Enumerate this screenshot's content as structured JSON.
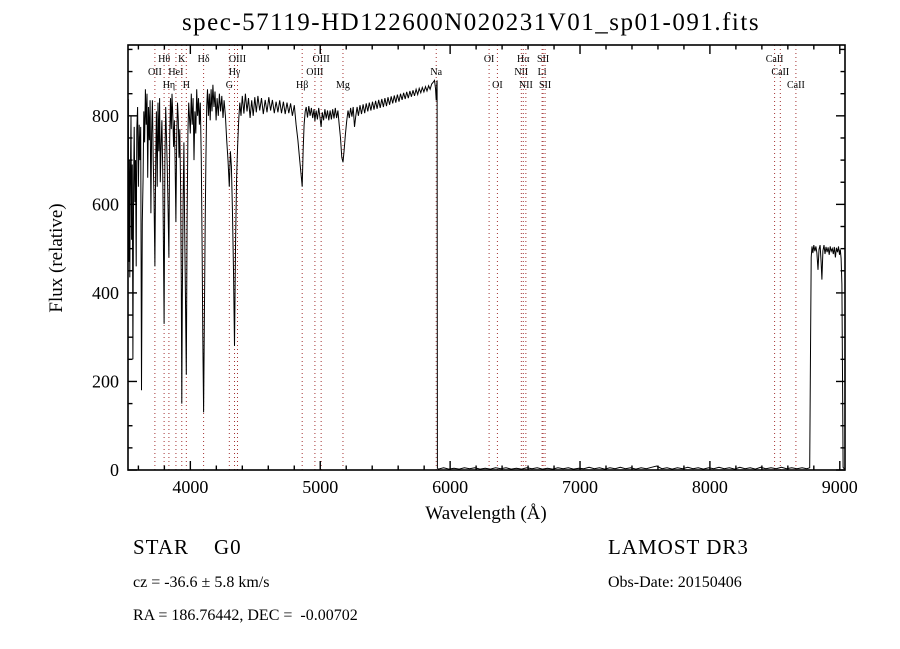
{
  "title": "spec-57119-HD122600N020231V01_sp01-091.fits",
  "chart_data": {
    "type": "line",
    "title": "spec-57119-HD122600N020231V01_sp01-091.fits",
    "xlabel": "Wavelength (Å)",
    "ylabel": "Flux (relative)",
    "xlim": [
      3520,
      9040
    ],
    "ylim": [
      0,
      960
    ],
    "xticks": [
      4000,
      5000,
      6000,
      7000,
      8000,
      9000
    ],
    "yticks": [
      0,
      200,
      400,
      600,
      800
    ],
    "x_minor_step": 200,
    "y_minor_step": 50,
    "grid": false,
    "legend": false,
    "series_color": "#000000",
    "marker_line_color": "#a33232",
    "spectral_lines": [
      {
        "wl": 3727,
        "label": "OII",
        "row": 2
      },
      {
        "wl": 3798,
        "label": "Hθ",
        "row": 1
      },
      {
        "wl": 3835,
        "label": "Hη",
        "row": 3
      },
      {
        "wl": 3889,
        "label": "HeI",
        "row": 2
      },
      {
        "wl": 3934,
        "label": "K",
        "row": 1
      },
      {
        "wl": 3969,
        "label": "H",
        "row": 3
      },
      {
        "wl": 4102,
        "label": "Hδ",
        "row": 1
      },
      {
        "wl": 4300,
        "label": "G",
        "row": 3
      },
      {
        "wl": 4340,
        "label": "Hγ",
        "row": 2
      },
      {
        "wl": 4363,
        "label": "OIII",
        "row": 1
      },
      {
        "wl": 4861,
        "label": "Hβ",
        "row": 3
      },
      {
        "wl": 4959,
        "label": "OIII",
        "row": 2
      },
      {
        "wl": 5007,
        "label": "OIII",
        "row": 1
      },
      {
        "wl": 5175,
        "label": "Mg",
        "row": 3
      },
      {
        "wl": 5893,
        "label": "Na",
        "row": 2
      },
      {
        "wl": 6300,
        "label": "OI",
        "row": 1
      },
      {
        "wl": 6364,
        "label": "OI",
        "row": 3
      },
      {
        "wl": 6548,
        "label": "NII",
        "row": 2
      },
      {
        "wl": 6563,
        "label": "Hα",
        "row": 1
      },
      {
        "wl": 6583,
        "label": "NII",
        "row": 3
      },
      {
        "wl": 6708,
        "label": "Li",
        "row": 2
      },
      {
        "wl": 6716,
        "label": "SII",
        "row": 1
      },
      {
        "wl": 6731,
        "label": "SII",
        "row": 3
      },
      {
        "wl": 8498,
        "label": "CaII",
        "row": 1
      },
      {
        "wl": 8542,
        "label": "CaII",
        "row": 2
      },
      {
        "wl": 8662,
        "label": "CaII",
        "row": 3
      }
    ],
    "points": [
      [
        3522,
        838
      ],
      [
        3525,
        600
      ],
      [
        3528,
        470
      ],
      [
        3531,
        700
      ],
      [
        3534,
        435
      ],
      [
        3538,
        640
      ],
      [
        3543,
        800
      ],
      [
        3548,
        520
      ],
      [
        3553,
        690
      ],
      [
        3558,
        250
      ],
      [
        3563,
        640
      ],
      [
        3568,
        775
      ],
      [
        3573,
        605
      ],
      [
        3578,
        700
      ],
      [
        3583,
        460
      ],
      [
        3588,
        770
      ],
      [
        3594,
        820
      ],
      [
        3600,
        640
      ],
      [
        3606,
        780
      ],
      [
        3612,
        700
      ],
      [
        3618,
        775
      ],
      [
        3624,
        180
      ],
      [
        3630,
        560
      ],
      [
        3636,
        660
      ],
      [
        3642,
        810
      ],
      [
        3648,
        740
      ],
      [
        3654,
        860
      ],
      [
        3660,
        780
      ],
      [
        3666,
        850
      ],
      [
        3672,
        660
      ],
      [
        3678,
        820
      ],
      [
        3684,
        745
      ],
      [
        3690,
        835
      ],
      [
        3696,
        580
      ],
      [
        3702,
        760
      ],
      [
        3708,
        835
      ],
      [
        3714,
        700
      ],
      [
        3720,
        620
      ],
      [
        3727,
        460
      ],
      [
        3733,
        700
      ],
      [
        3739,
        810
      ],
      [
        3745,
        640
      ],
      [
        3751,
        830
      ],
      [
        3757,
        720
      ],
      [
        3763,
        840
      ],
      [
        3769,
        650
      ],
      [
        3775,
        735
      ],
      [
        3781,
        790
      ],
      [
        3787,
        680
      ],
      [
        3792,
        540
      ],
      [
        3798,
        330
      ],
      [
        3804,
        700
      ],
      [
        3810,
        820
      ],
      [
        3816,
        760
      ],
      [
        3822,
        690
      ],
      [
        3828,
        600
      ],
      [
        3835,
        480
      ],
      [
        3841,
        750
      ],
      [
        3847,
        840
      ],
      [
        3853,
        770
      ],
      [
        3859,
        850
      ],
      [
        3865,
        800
      ],
      [
        3871,
        730
      ],
      [
        3877,
        790
      ],
      [
        3883,
        680
      ],
      [
        3889,
        560
      ],
      [
        3895,
        750
      ],
      [
        3901,
        830
      ],
      [
        3907,
        790
      ],
      [
        3913,
        705
      ],
      [
        3919,
        770
      ],
      [
        3925,
        640
      ],
      [
        3930,
        420
      ],
      [
        3934,
        150
      ],
      [
        3938,
        380
      ],
      [
        3944,
        600
      ],
      [
        3950,
        740
      ],
      [
        3956,
        560
      ],
      [
        3962,
        400
      ],
      [
        3969,
        215
      ],
      [
        3975,
        560
      ],
      [
        3981,
        760
      ],
      [
        3987,
        830
      ],
      [
        3993,
        800
      ],
      [
        4000,
        760
      ],
      [
        4007,
        850
      ],
      [
        4014,
        780
      ],
      [
        4021,
        840
      ],
      [
        4028,
        700
      ],
      [
        4035,
        810
      ],
      [
        4042,
        760
      ],
      [
        4049,
        860
      ],
      [
        4056,
        800
      ],
      [
        4063,
        840
      ],
      [
        4070,
        780
      ],
      [
        4077,
        830
      ],
      [
        4084,
        700
      ],
      [
        4091,
        480
      ],
      [
        4096,
        300
      ],
      [
        4102,
        130
      ],
      [
        4108,
        350
      ],
      [
        4114,
        560
      ],
      [
        4120,
        700
      ],
      [
        4126,
        820
      ],
      [
        4132,
        860
      ],
      [
        4139,
        800
      ],
      [
        4146,
        850
      ],
      [
        4153,
        790
      ],
      [
        4160,
        860
      ],
      [
        4167,
        810
      ],
      [
        4174,
        870
      ],
      [
        4182,
        820
      ],
      [
        4190,
        855
      ],
      [
        4198,
        790
      ],
      [
        4206,
        840
      ],
      [
        4215,
        800
      ],
      [
        4224,
        850
      ],
      [
        4233,
        810
      ],
      [
        4242,
        845
      ],
      [
        4251,
        795
      ],
      [
        4260,
        835
      ],
      [
        4270,
        800
      ],
      [
        4280,
        745
      ],
      [
        4290,
        700
      ],
      [
        4300,
        640
      ],
      [
        4308,
        720
      ],
      [
        4316,
        685
      ],
      [
        4324,
        590
      ],
      [
        4332,
        450
      ],
      [
        4340,
        280
      ],
      [
        4348,
        520
      ],
      [
        4356,
        660
      ],
      [
        4364,
        730
      ],
      [
        4372,
        790
      ],
      [
        4381,
        830
      ],
      [
        4390,
        800
      ],
      [
        4400,
        845
      ],
      [
        4412,
        805
      ],
      [
        4424,
        850
      ],
      [
        4436,
        810
      ],
      [
        4448,
        840
      ],
      [
        4460,
        795
      ],
      [
        4472,
        835
      ],
      [
        4484,
        800
      ],
      [
        4496,
        842
      ],
      [
        4508,
        808
      ],
      [
        4520,
        845
      ],
      [
        4534,
        812
      ],
      [
        4548,
        840
      ],
      [
        4562,
        804
      ],
      [
        4576,
        836
      ],
      [
        4590,
        808
      ],
      [
        4604,
        842
      ],
      [
        4618,
        812
      ],
      [
        4632,
        836
      ],
      [
        4646,
        806
      ],
      [
        4660,
        832
      ],
      [
        4674,
        808
      ],
      [
        4688,
        835
      ],
      [
        4702,
        806
      ],
      [
        4716,
        832
      ],
      [
        4730,
        804
      ],
      [
        4744,
        830
      ],
      [
        4758,
        806
      ],
      [
        4772,
        828
      ],
      [
        4786,
        800
      ],
      [
        4800,
        824
      ],
      [
        4814,
        780
      ],
      [
        4828,
        745
      ],
      [
        4842,
        700
      ],
      [
        4855,
        660
      ],
      [
        4861,
        640
      ],
      [
        4868,
        720
      ],
      [
        4876,
        780
      ],
      [
        4884,
        810
      ],
      [
        4892,
        820
      ],
      [
        4902,
        796
      ],
      [
        4912,
        822
      ],
      [
        4922,
        800
      ],
      [
        4932,
        818
      ],
      [
        4942,
        795
      ],
      [
        4952,
        815
      ],
      [
        4959,
        788
      ],
      [
        4968,
        812
      ],
      [
        4978,
        792
      ],
      [
        4988,
        818
      ],
      [
        4998,
        796
      ],
      [
        5007,
        775
      ],
      [
        5016,
        808
      ],
      [
        5026,
        790
      ],
      [
        5036,
        815
      ],
      [
        5046,
        794
      ],
      [
        5056,
        812
      ],
      [
        5066,
        790
      ],
      [
        5076,
        812
      ],
      [
        5086,
        792
      ],
      [
        5096,
        815
      ],
      [
        5106,
        794
      ],
      [
        5116,
        818
      ],
      [
        5126,
        795
      ],
      [
        5136,
        812
      ],
      [
        5146,
        780
      ],
      [
        5156,
        750
      ],
      [
        5166,
        706
      ],
      [
        5175,
        695
      ],
      [
        5184,
        722
      ],
      [
        5194,
        758
      ],
      [
        5204,
        788
      ],
      [
        5214,
        812
      ],
      [
        5224,
        795
      ],
      [
        5234,
        818
      ],
      [
        5244,
        798
      ],
      [
        5254,
        820
      ],
      [
        5264,
        775
      ],
      [
        5274,
        800
      ],
      [
        5284,
        820
      ],
      [
        5294,
        800
      ],
      [
        5306,
        824
      ],
      [
        5318,
        804
      ],
      [
        5330,
        826
      ],
      [
        5342,
        806
      ],
      [
        5354,
        828
      ],
      [
        5366,
        810
      ],
      [
        5378,
        830
      ],
      [
        5390,
        812
      ],
      [
        5402,
        832
      ],
      [
        5414,
        814
      ],
      [
        5426,
        834
      ],
      [
        5438,
        816
      ],
      [
        5450,
        836
      ],
      [
        5462,
        818
      ],
      [
        5474,
        838
      ],
      [
        5486,
        820
      ],
      [
        5498,
        840
      ],
      [
        5510,
        822
      ],
      [
        5522,
        842
      ],
      [
        5534,
        825
      ],
      [
        5546,
        844
      ],
      [
        5558,
        828
      ],
      [
        5570,
        846
      ],
      [
        5582,
        830
      ],
      [
        5594,
        848
      ],
      [
        5606,
        832
      ],
      [
        5618,
        850
      ],
      [
        5630,
        836
      ],
      [
        5642,
        852
      ],
      [
        5654,
        838
      ],
      [
        5666,
        854
      ],
      [
        5678,
        840
      ],
      [
        5690,
        856
      ],
      [
        5702,
        843
      ],
      [
        5714,
        858
      ],
      [
        5726,
        845
      ],
      [
        5738,
        860
      ],
      [
        5750,
        848
      ],
      [
        5762,
        862
      ],
      [
        5774,
        852
      ],
      [
        5786,
        864
      ],
      [
        5798,
        854
      ],
      [
        5810,
        866
      ],
      [
        5822,
        856
      ],
      [
        5834,
        868
      ],
      [
        5846,
        860
      ],
      [
        5858,
        872
      ],
      [
        5870,
        876
      ],
      [
        5880,
        880
      ],
      [
        5887,
        862
      ],
      [
        5893,
        835
      ],
      [
        5897,
        872
      ],
      [
        5900,
        880
      ],
      [
        5902,
        4
      ],
      [
        5910,
        2
      ],
      [
        5950,
        5
      ],
      [
        5990,
        2
      ],
      [
        6030,
        4
      ],
      [
        6070,
        2
      ],
      [
        6110,
        5
      ],
      [
        6150,
        3
      ],
      [
        6190,
        5
      ],
      [
        6230,
        2
      ],
      [
        6270,
        4
      ],
      [
        6310,
        2
      ],
      [
        6350,
        5
      ],
      [
        6390,
        3
      ],
      [
        6430,
        5
      ],
      [
        6470,
        2
      ],
      [
        6510,
        4
      ],
      [
        6550,
        2
      ],
      [
        6590,
        5
      ],
      [
        6630,
        3
      ],
      [
        6670,
        5
      ],
      [
        6710,
        2
      ],
      [
        6750,
        4
      ],
      [
        6790,
        2
      ],
      [
        6830,
        5
      ],
      [
        6870,
        3
      ],
      [
        6910,
        5
      ],
      [
        6950,
        2
      ],
      [
        6990,
        4
      ],
      [
        7030,
        3
      ],
      [
        7070,
        6
      ],
      [
        7110,
        3
      ],
      [
        7150,
        5
      ],
      [
        7190,
        2
      ],
      [
        7230,
        5
      ],
      [
        7270,
        3
      ],
      [
        7310,
        6
      ],
      [
        7350,
        3
      ],
      [
        7390,
        5
      ],
      [
        7430,
        2
      ],
      [
        7470,
        5
      ],
      [
        7510,
        3
      ],
      [
        7550,
        6
      ],
      [
        7590,
        9
      ],
      [
        7630,
        3
      ],
      [
        7670,
        5
      ],
      [
        7710,
        2
      ],
      [
        7750,
        5
      ],
      [
        7790,
        3
      ],
      [
        7830,
        6
      ],
      [
        7870,
        3
      ],
      [
        7910,
        5
      ],
      [
        7950,
        2
      ],
      [
        7990,
        5
      ],
      [
        8030,
        3
      ],
      [
        8070,
        6
      ],
      [
        8110,
        3
      ],
      [
        8150,
        5
      ],
      [
        8190,
        2
      ],
      [
        8230,
        6
      ],
      [
        8270,
        3
      ],
      [
        8310,
        5
      ],
      [
        8350,
        2
      ],
      [
        8390,
        6
      ],
      [
        8430,
        3
      ],
      [
        8470,
        5
      ],
      [
        8510,
        3
      ],
      [
        8550,
        6
      ],
      [
        8590,
        3
      ],
      [
        8630,
        5
      ],
      [
        8670,
        3
      ],
      [
        8710,
        5
      ],
      [
        8745,
        3
      ],
      [
        8768,
        5
      ],
      [
        8775,
        300
      ],
      [
        8780,
        480
      ],
      [
        8786,
        505
      ],
      [
        8793,
        490
      ],
      [
        8800,
        508
      ],
      [
        8808,
        494
      ],
      [
        8816,
        505
      ],
      [
        8824,
        490
      ],
      [
        8832,
        452
      ],
      [
        8840,
        498
      ],
      [
        8848,
        508
      ],
      [
        8856,
        470
      ],
      [
        8862,
        430
      ],
      [
        8870,
        495
      ],
      [
        8878,
        508
      ],
      [
        8886,
        488
      ],
      [
        8894,
        504
      ],
      [
        8902,
        492
      ],
      [
        8910,
        503
      ],
      [
        8918,
        486
      ],
      [
        8926,
        505
      ],
      [
        8934,
        494
      ],
      [
        8942,
        500
      ],
      [
        8950,
        488
      ],
      [
        8958,
        504
      ],
      [
        8966,
        480
      ],
      [
        8974,
        502
      ],
      [
        8982,
        492
      ],
      [
        8990,
        505
      ],
      [
        8998,
        486
      ],
      [
        9004,
        498
      ],
      [
        9010,
        478
      ],
      [
        9016,
        420
      ],
      [
        9020,
        250
      ],
      [
        9025,
        6
      ],
      [
        9035,
        2
      ]
    ]
  },
  "footer": {
    "left": {
      "class_line": "STAR    G0",
      "cz_line": "cz = -36.6 ± 5.8 km/s",
      "radec_line": "RA = 186.76442, DEC =  -0.00702"
    },
    "right": {
      "survey_line": "LAMOST DR3",
      "obsdate_line": "Obs-Date: 20150406"
    }
  }
}
